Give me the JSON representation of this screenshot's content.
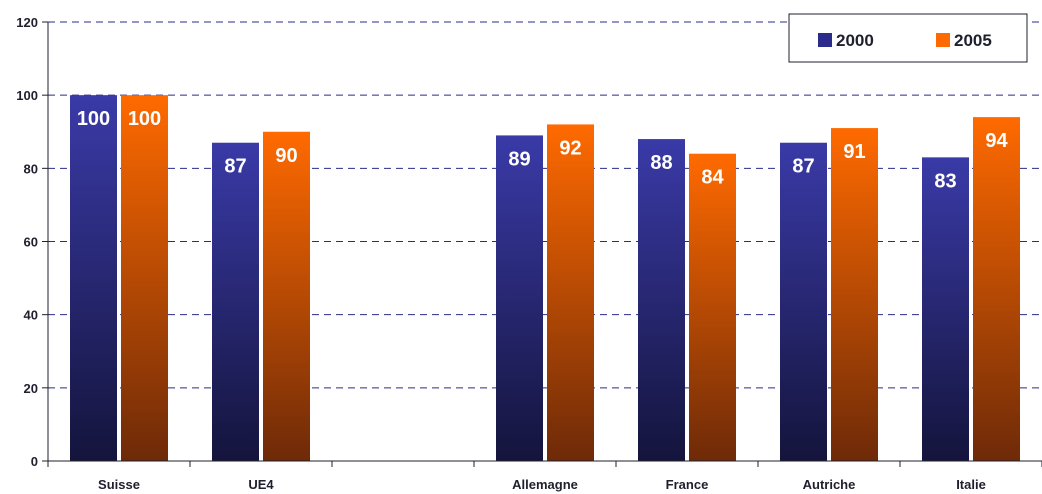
{
  "chart_data": {
    "type": "bar",
    "categories": [
      "Suisse",
      "UE4",
      "",
      "Allemagne",
      "France",
      "Autriche",
      "Italie"
    ],
    "series": [
      {
        "name": "2000",
        "values": [
          100,
          87,
          null,
          89,
          88,
          87,
          83
        ],
        "labels": [
          "100",
          "87",
          "",
          "89",
          "88",
          "87",
          "83"
        ],
        "color_top": "#3a3aa8",
        "color_bottom": "#14143c"
      },
      {
        "name": "2005",
        "values": [
          100,
          90,
          null,
          92,
          84,
          91,
          94
        ],
        "labels": [
          "100",
          "90",
          "",
          "92",
          "84",
          "91",
          "94"
        ],
        "color_top": "#ff6a00",
        "color_bottom": "#6e2a08"
      }
    ],
    "y_ticks": [
      "0",
      "20",
      "40",
      "60",
      "80",
      "100",
      "120"
    ],
    "ylim": [
      0,
      120
    ],
    "grid": true,
    "legend_position": "top-right",
    "title": "",
    "xlabel": "",
    "ylabel": ""
  }
}
